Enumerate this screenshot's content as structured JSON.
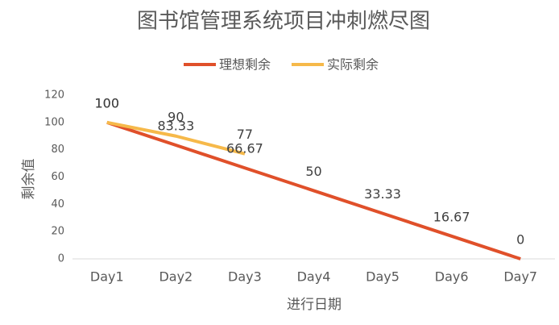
{
  "chart_data": {
    "type": "line",
    "title": "图书馆管理系统项目冲刺燃尽图",
    "x_label": "进行日期",
    "y_label": "剩余值",
    "categories": [
      "Day1",
      "Day2",
      "Day3",
      "Day4",
      "Day5",
      "Day6",
      "Day7"
    ],
    "series": [
      {
        "name": "理想剩余",
        "color": "#e0502a",
        "values": [
          100,
          83.33,
          66.67,
          50,
          33.33,
          16.67,
          0
        ]
      },
      {
        "name": "实际剩余",
        "color": "#f6b94a",
        "values": [
          100,
          90,
          77,
          null,
          null,
          null,
          null
        ]
      }
    ],
    "ylim": [
      0,
      120
    ],
    "yticks": [
      0,
      20,
      40,
      60,
      80,
      100,
      120
    ],
    "grid": false,
    "legend": "top"
  }
}
